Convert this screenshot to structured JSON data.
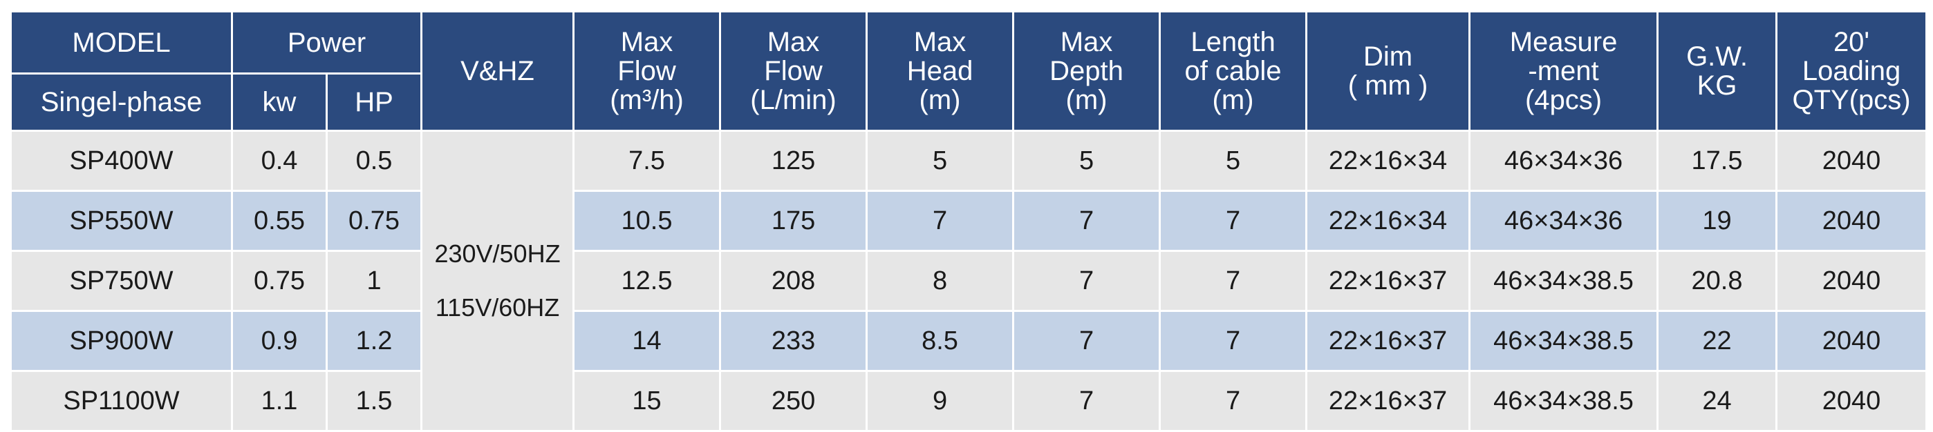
{
  "header": {
    "model": "MODEL",
    "model_sub": "Singel-phase",
    "power": "Power",
    "kw": "kw",
    "hp": "HP",
    "vhz": "V&HZ",
    "max_flow_m3": [
      "Max",
      "Flow",
      "(m³/h)"
    ],
    "max_flow_lmin": [
      "Max",
      "Flow",
      "(L/min)"
    ],
    "max_head": [
      "Max",
      "Head",
      "(m)"
    ],
    "max_depth": [
      "Max",
      "Depth",
      "(m)"
    ],
    "cable": [
      "Length",
      "of cable",
      "(m)"
    ],
    "dim": [
      "Dim",
      "( mm )"
    ],
    "measure": [
      "Measure",
      "-ment",
      "(4pcs)"
    ],
    "gw": [
      "G.W.",
      "KG"
    ],
    "loading": [
      "20'",
      "Loading",
      "QTY(pcs)"
    ]
  },
  "voltage": [
    "230V/50HZ",
    "115V/60HZ"
  ],
  "rows": [
    {
      "model": "SP400W",
      "kw": "0.4",
      "hp": "0.5",
      "flow_m3": "7.5",
      "flow_l": "125",
      "head": "5",
      "depth": "5",
      "cable": "5",
      "dim": "22×16×34",
      "measure": "46×34×36",
      "gw": "17.5",
      "qty": "2040"
    },
    {
      "model": "SP550W",
      "kw": "0.55",
      "hp": "0.75",
      "flow_m3": "10.5",
      "flow_l": "175",
      "head": "7",
      "depth": "7",
      "cable": "7",
      "dim": "22×16×34",
      "measure": "46×34×36",
      "gw": "19",
      "qty": "2040"
    },
    {
      "model": "SP750W",
      "kw": "0.75",
      "hp": "1",
      "flow_m3": "12.5",
      "flow_l": "208",
      "head": "8",
      "depth": "7",
      "cable": "7",
      "dim": "22×16×37",
      "measure": "46×34×38.5",
      "gw": "20.8",
      "qty": "2040"
    },
    {
      "model": "SP900W",
      "kw": "0.9",
      "hp": "1.2",
      "flow_m3": "14",
      "flow_l": "233",
      "head": "8.5",
      "depth": "7",
      "cable": "7",
      "dim": "22×16×37",
      "measure": "46×34×38.5",
      "gw": "22",
      "qty": "2040"
    },
    {
      "model": "SP1100W",
      "kw": "1.1",
      "hp": "1.5",
      "flow_m3": "15",
      "flow_l": "250",
      "head": "9",
      "depth": "7",
      "cable": "7",
      "dim": "22×16×37",
      "measure": "46×34×38.5",
      "gw": "24",
      "qty": "2040"
    }
  ],
  "colors": {
    "header_bg": "#2b4a7e",
    "row_gray": "#e6e6e6",
    "row_blue": "#c3d2e6"
  }
}
